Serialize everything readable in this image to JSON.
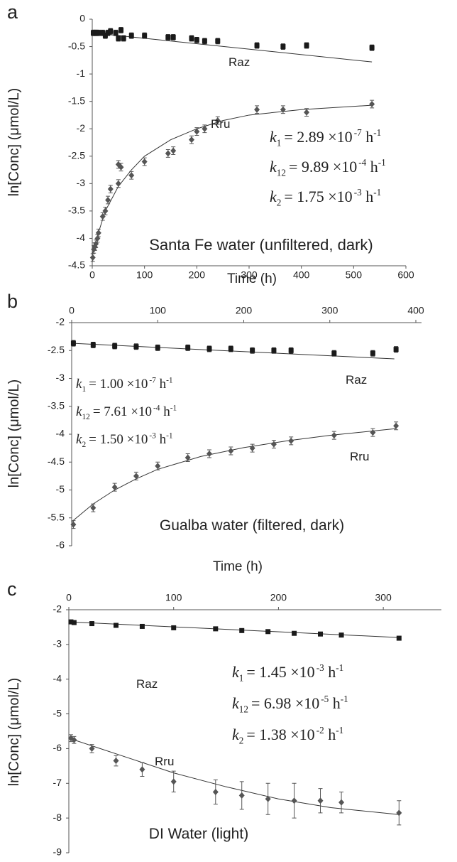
{
  "chart_data": [
    {
      "type": "scatter",
      "panel_label": "a",
      "y_label": "ln[Conc] (μmol/L)",
      "x_label": "Time (h)",
      "annotation": "Santa Fe water (unfiltered, dark)",
      "x_axis": "bottom",
      "xlim": [
        0,
        600
      ],
      "xticks": [
        0,
        100,
        200,
        300,
        400,
        500,
        600
      ],
      "ylim": [
        -4.5,
        0
      ],
      "yticks": [
        0,
        -0.5,
        -1,
        -1.5,
        -2,
        -2.5,
        -3,
        -3.5,
        -4,
        -4.5
      ],
      "equations": [
        {
          "k": "k",
          "sub": "1",
          "rhs": "= 2.89 ×10",
          "exp": "-7",
          "unit": " h",
          "unit_exp": "-1"
        },
        {
          "k": "k",
          "sub": "12",
          "rhs": "= 9.89 ×10",
          "exp": "-4",
          "unit": " h",
          "unit_exp": "-1"
        },
        {
          "k": "k",
          "sub": "2",
          "rhs": "= 1.75 ×10",
          "exp": "-3",
          "unit": " h",
          "unit_exp": "-1"
        }
      ],
      "series": [
        {
          "name": "Raz",
          "color": "#1a1a1a",
          "marker": "square",
          "x": [
            2,
            5,
            8,
            12,
            20,
            25,
            30,
            35,
            45,
            50,
            55,
            60,
            75,
            100,
            145,
            155,
            190,
            200,
            215,
            240,
            315,
            365,
            410,
            535
          ],
          "values": [
            -0.25,
            -0.25,
            -0.25,
            -0.25,
            -0.25,
            -0.3,
            -0.25,
            -0.22,
            -0.25,
            -0.35,
            -0.2,
            -0.35,
            -0.3,
            -0.3,
            -0.33,
            -0.33,
            -0.35,
            -0.38,
            -0.4,
            -0.4,
            -0.48,
            -0.5,
            -0.48,
            -0.52
          ],
          "errors": [
            0.05,
            0.05,
            0.05,
            0.05,
            0.05,
            0.05,
            0.05,
            0.05,
            0.05,
            0.05,
            0.05,
            0.05,
            0.05,
            0.05,
            0.05,
            0.05,
            0.05,
            0.05,
            0.05,
            0.05,
            0.05,
            0.05,
            0.05,
            0.05
          ],
          "fit": {
            "x": [
              0,
              535
            ],
            "values": [
              -0.25,
              -0.78
            ]
          }
        },
        {
          "name": "Rru",
          "color": "#555555",
          "marker": "diamond",
          "x": [
            1,
            3,
            5,
            7,
            10,
            12,
            20,
            25,
            30,
            35,
            50,
            50,
            55,
            75,
            100,
            145,
            155,
            190,
            200,
            215,
            240,
            315,
            365,
            410,
            535
          ],
          "values": [
            -4.35,
            -4.2,
            -4.15,
            -4.1,
            -4.0,
            -3.9,
            -3.6,
            -3.5,
            -3.3,
            -3.1,
            -2.65,
            -3.0,
            -2.7,
            -2.85,
            -2.6,
            -2.45,
            -2.4,
            -2.2,
            -2.05,
            -2.0,
            -1.85,
            -1.65,
            -1.65,
            -1.7,
            -1.55
          ],
          "errors": [
            0.07,
            0.07,
            0.07,
            0.07,
            0.07,
            0.07,
            0.07,
            0.07,
            0.07,
            0.07,
            0.07,
            0.07,
            0.07,
            0.07,
            0.07,
            0.07,
            0.07,
            0.07,
            0.07,
            0.07,
            0.07,
            0.07,
            0.07,
            0.07,
            0.07
          ],
          "fit": {
            "x": [
              0,
              10,
              25,
              50,
              75,
              100,
              150,
              200,
              250,
              300,
              400,
              535
            ],
            "values": [
              -4.3,
              -3.95,
              -3.5,
              -3.05,
              -2.75,
              -2.5,
              -2.2,
              -2.0,
              -1.85,
              -1.75,
              -1.65,
              -1.57
            ]
          }
        }
      ]
    },
    {
      "type": "scatter",
      "panel_label": "b",
      "y_label": "ln[Conc] (μmol/L)",
      "annotation": "Gualba water (filtered, dark)",
      "x_axis": "top",
      "xlim": [
        0,
        400
      ],
      "xticks": [
        0,
        100,
        200,
        300,
        400
      ],
      "ylim": [
        -6,
        -2
      ],
      "yticks": [
        -2,
        -2.5,
        -3,
        -3.5,
        -4,
        -4.5,
        -5,
        -5.5,
        -6
      ],
      "equations": [
        {
          "k": "k",
          "sub": "1",
          "rhs": "= 1.00 ×10",
          "exp": "-7",
          "unit": " h",
          "unit_exp": "-1"
        },
        {
          "k": "k",
          "sub": "12",
          "rhs": "= 7.61 ×10",
          "exp": "-4",
          "unit": " h",
          "unit_exp": "-1"
        },
        {
          "k": "k",
          "sub": "2",
          "rhs": "= 1.50 ×10",
          "exp": "-3",
          "unit": " h",
          "unit_exp": "-1"
        }
      ],
      "series": [
        {
          "name": "Raz",
          "color": "#1a1a1a",
          "marker": "square",
          "x": [
            2,
            25,
            50,
            75,
            100,
            135,
            160,
            185,
            210,
            235,
            255,
            305,
            350,
            377
          ],
          "values": [
            -2.37,
            -2.4,
            -2.42,
            -2.43,
            -2.45,
            -2.45,
            -2.47,
            -2.47,
            -2.5,
            -2.5,
            -2.5,
            -2.55,
            -2.55,
            -2.48
          ],
          "errors": [
            0.05,
            0.05,
            0.05,
            0.05,
            0.05,
            0.05,
            0.05,
            0.05,
            0.05,
            0.05,
            0.05,
            0.05,
            0.05,
            0.05
          ],
          "fit": {
            "x": [
              0,
              375
            ],
            "values": [
              -2.37,
              -2.65
            ]
          }
        },
        {
          "name": "Rru",
          "color": "#555555",
          "marker": "diamond",
          "x": [
            2,
            25,
            50,
            75,
            100,
            135,
            160,
            185,
            210,
            235,
            255,
            305,
            350,
            377
          ],
          "values": [
            -5.62,
            -5.32,
            -4.95,
            -4.75,
            -4.57,
            -4.42,
            -4.35,
            -4.3,
            -4.25,
            -4.18,
            -4.12,
            -4.02,
            -3.97,
            -3.85
          ],
          "errors": [
            0.07,
            0.07,
            0.07,
            0.07,
            0.07,
            0.07,
            0.07,
            0.07,
            0.07,
            0.07,
            0.07,
            0.07,
            0.07,
            0.07
          ],
          "fit": {
            "x": [
              0,
              25,
              50,
              75,
              100,
              150,
              200,
              250,
              300,
              377
            ],
            "values": [
              -5.57,
              -5.25,
              -5.0,
              -4.8,
              -4.63,
              -4.4,
              -4.24,
              -4.12,
              -4.02,
              -3.9
            ]
          }
        }
      ]
    },
    {
      "type": "scatter",
      "panel_label": "c",
      "y_label": "ln[Conc] (μmol/L)",
      "x_label": "Time (h)",
      "annotation": "DI Water (light)",
      "x_axis": "top",
      "xlim": [
        0,
        350
      ],
      "xticks": [
        0,
        100,
        200,
        300
      ],
      "ylim": [
        -9,
        -2
      ],
      "yticks": [
        -2,
        -3,
        -4,
        -5,
        -6,
        -7,
        -8,
        -9
      ],
      "equations": [
        {
          "k": "k",
          "sub": "1",
          "rhs": "= 1.45 ×10",
          "exp": "-3",
          "unit": " h",
          "unit_exp": "-1"
        },
        {
          "k": "k",
          "sub": "12",
          "rhs": "= 6.98 ×10",
          "exp": "-5",
          "unit": " h",
          "unit_exp": "-1"
        },
        {
          "k": "k",
          "sub": "2",
          "rhs": "= 1.38 ×10",
          "exp": "-2",
          "unit": " h",
          "unit_exp": "-1"
        }
      ],
      "series": [
        {
          "name": "Raz",
          "color": "#1a1a1a",
          "marker": "square",
          "x": [
            2,
            5,
            22,
            45,
            70,
            100,
            140,
            165,
            190,
            215,
            240,
            260,
            315
          ],
          "values": [
            -2.35,
            -2.37,
            -2.4,
            -2.45,
            -2.48,
            -2.52,
            -2.55,
            -2.6,
            -2.63,
            -2.68,
            -2.7,
            -2.73,
            -2.82
          ],
          "errors": [
            0.05,
            0.05,
            0.05,
            0.05,
            0.05,
            0.05,
            0.05,
            0.05,
            0.05,
            0.05,
            0.05,
            0.05,
            0.05
          ],
          "fit": {
            "x": [
              0,
              315
            ],
            "values": [
              -2.35,
              -2.8
            ]
          }
        },
        {
          "name": "Rru",
          "color": "#555555",
          "marker": "diamond",
          "x": [
            2,
            5,
            22,
            45,
            70,
            100,
            140,
            165,
            190,
            215,
            240,
            260,
            315
          ],
          "values": [
            -5.7,
            -5.75,
            -6.0,
            -6.35,
            -6.6,
            -6.95,
            -7.25,
            -7.35,
            -7.45,
            -7.5,
            -7.5,
            -7.55,
            -7.85
          ],
          "errors": [
            0.1,
            0.1,
            0.12,
            0.15,
            0.2,
            0.3,
            0.35,
            0.4,
            0.45,
            0.5,
            0.35,
            0.3,
            0.35
          ],
          "fit": {
            "x": [
              0,
              50,
              100,
              150,
              200,
              250,
              315
            ],
            "values": [
              -5.7,
              -6.2,
              -6.7,
              -7.1,
              -7.45,
              -7.7,
              -7.9
            ]
          }
        }
      ]
    }
  ]
}
